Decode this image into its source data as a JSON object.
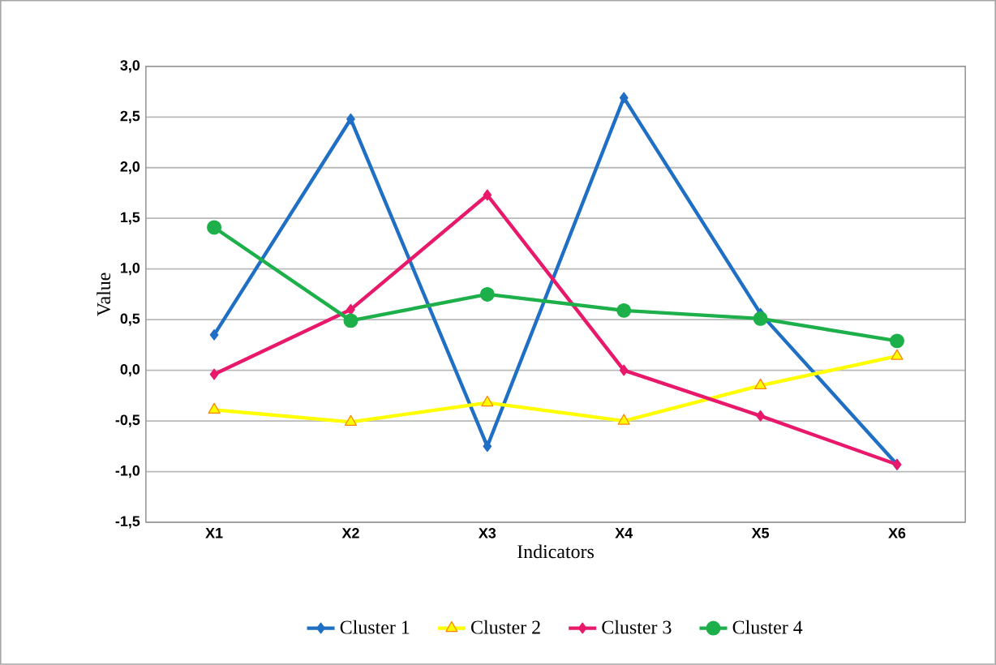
{
  "chart_data": {
    "type": "line",
    "xlabel": "Indicators",
    "ylabel": "Value",
    "categories": [
      "X1",
      "X2",
      "X3",
      "X4",
      "X5",
      "X6"
    ],
    "series": [
      {
        "name": "Cluster 1",
        "color": "#1f6fc5",
        "marker": "diamond",
        "values": [
          0.35,
          2.48,
          -0.75,
          2.69,
          0.56,
          -0.93
        ]
      },
      {
        "name": "Cluster 2",
        "color": "#ffff00",
        "marker": "triangle",
        "values": [
          -0.39,
          -0.51,
          -0.32,
          -0.5,
          -0.15,
          0.14
        ]
      },
      {
        "name": "Cluster 3",
        "color": "#e8186a",
        "marker": "diamond",
        "values": [
          -0.04,
          0.6,
          1.73,
          0.0,
          -0.45,
          -0.93
        ]
      },
      {
        "name": "Cluster 4",
        "color": "#1db04a",
        "marker": "circle",
        "values": [
          1.41,
          0.49,
          0.75,
          0.59,
          0.51,
          0.29
        ]
      }
    ],
    "ylim": [
      -1.5,
      3.0
    ],
    "yticks": [
      {
        "value": -1.5,
        "label": "-1,5"
      },
      {
        "value": -1.0,
        "label": "-1,0"
      },
      {
        "value": -0.5,
        "label": "-0,5"
      },
      {
        "value": 0.0,
        "label": "0,0"
      },
      {
        "value": 0.5,
        "label": "0,5"
      },
      {
        "value": 1.0,
        "label": "1,0"
      },
      {
        "value": 1.5,
        "label": "1,5"
      },
      {
        "value": 2.0,
        "label": "2,0"
      },
      {
        "value": 2.5,
        "label": "2,5"
      },
      {
        "value": 3.0,
        "label": "3,0"
      }
    ],
    "grid": "y",
    "legend": "bottom",
    "line_style": "solid"
  }
}
